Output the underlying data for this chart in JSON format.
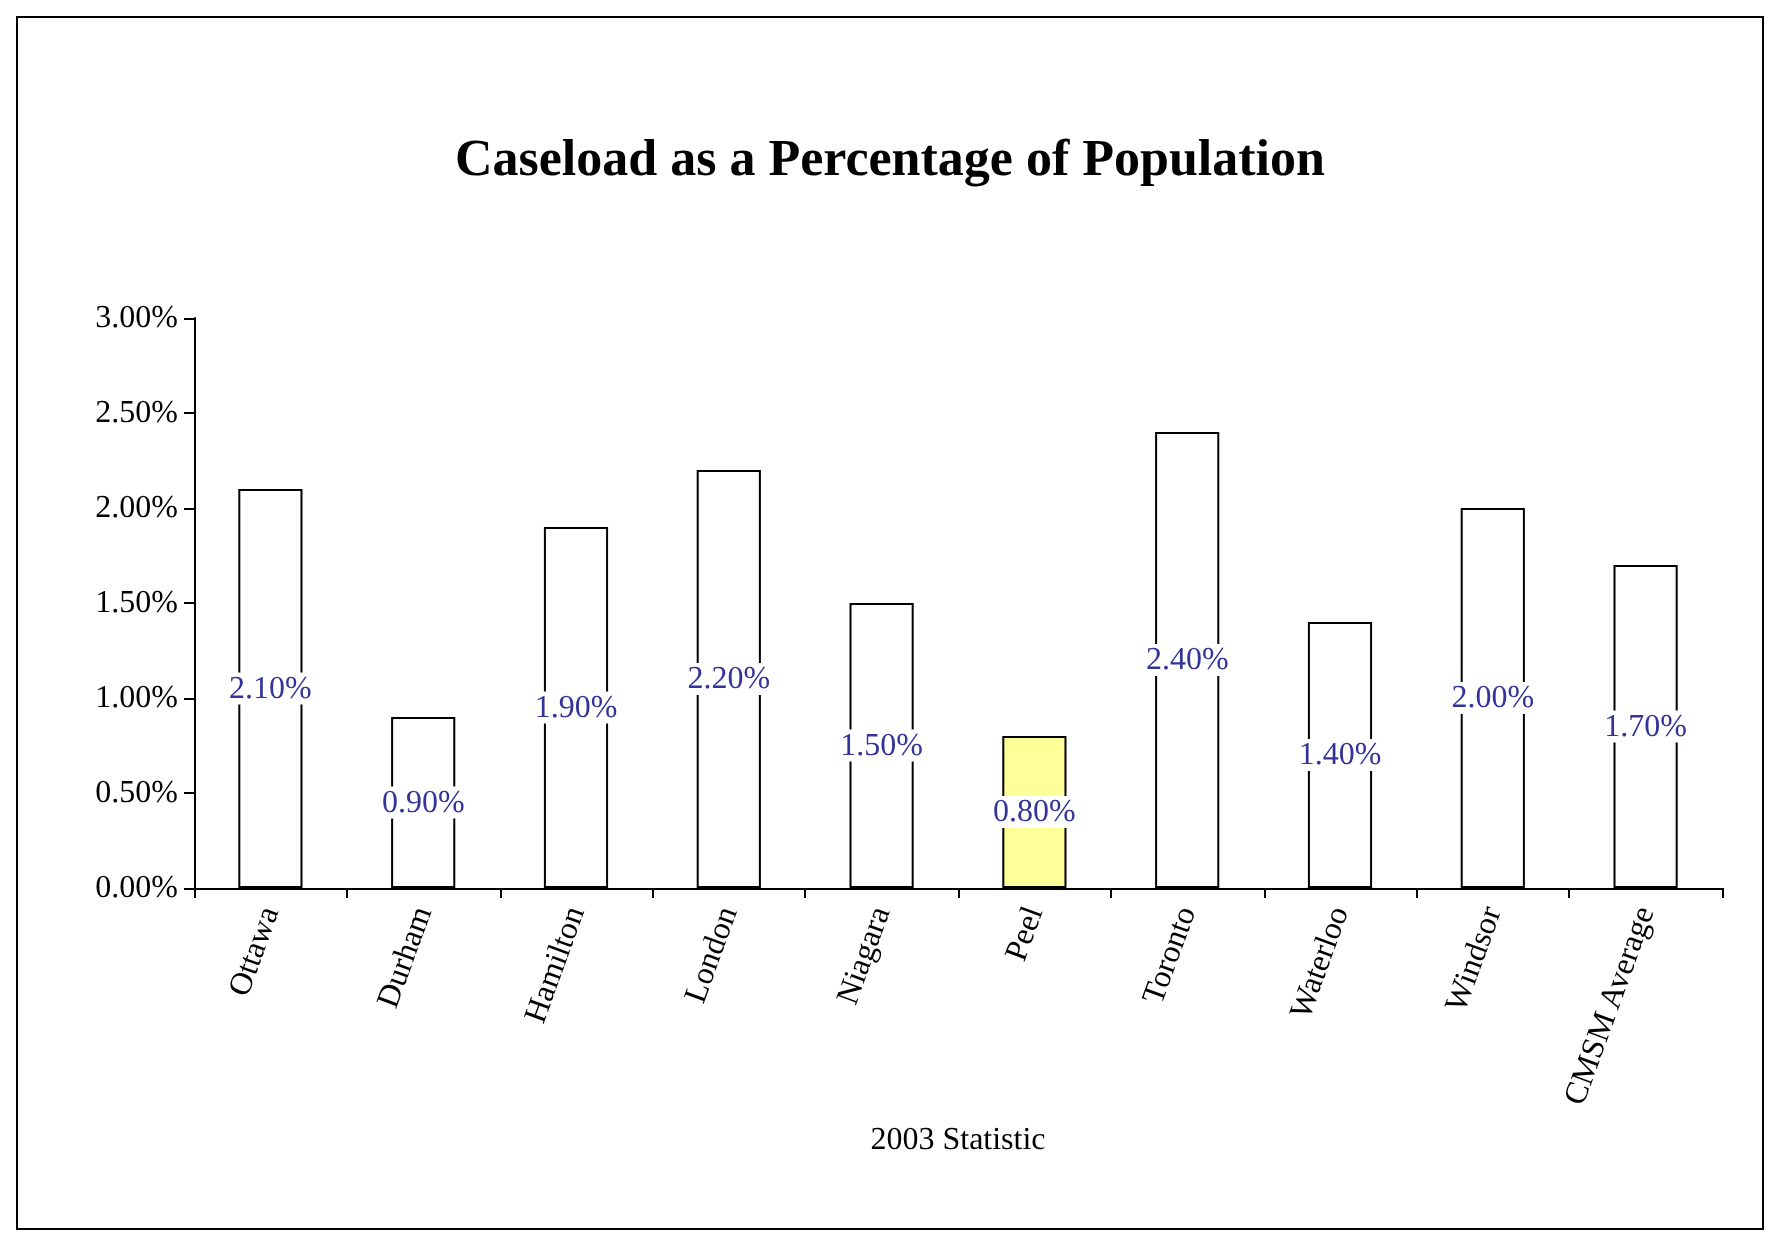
{
  "chart_data": {
    "type": "bar",
    "title": "Caseload as a Percentage of Population",
    "xlabel": "2003 Statistic",
    "categories": [
      "Ottawa",
      "Durham",
      "Hamilton",
      "London",
      "Niagara",
      "Peel",
      "Toronto",
      "Waterloo",
      "Windsor",
      "CMSM Average"
    ],
    "values": [
      2.1,
      0.9,
      1.9,
      2.2,
      1.5,
      0.8,
      2.4,
      1.4,
      2.0,
      1.7
    ],
    "colors": [
      "#ffffff",
      "#ffffff",
      "#ffffff",
      "#ffffff",
      "#ffffff",
      "#ffff99",
      "#ffffff",
      "#ffffff",
      "#ffffff",
      "#ffffff"
    ],
    "value_labels": [
      "2.10%",
      "0.90%",
      "1.90%",
      "2.20%",
      "1.50%",
      "0.80%",
      "2.40%",
      "1.40%",
      "2.00%",
      "1.70%"
    ],
    "ylim": [
      0,
      3
    ],
    "yticks": [
      {
        "value": 0,
        "label": "0.00%"
      },
      {
        "value": 0.5,
        "label": "0.50%"
      },
      {
        "value": 1,
        "label": "1.00%"
      },
      {
        "value": 1.5,
        "label": "1.50%"
      },
      {
        "value": 2,
        "label": "2.00%"
      },
      {
        "value": 2.5,
        "label": "2.50%"
      },
      {
        "value": 3,
        "label": "3.00%"
      }
    ]
  }
}
